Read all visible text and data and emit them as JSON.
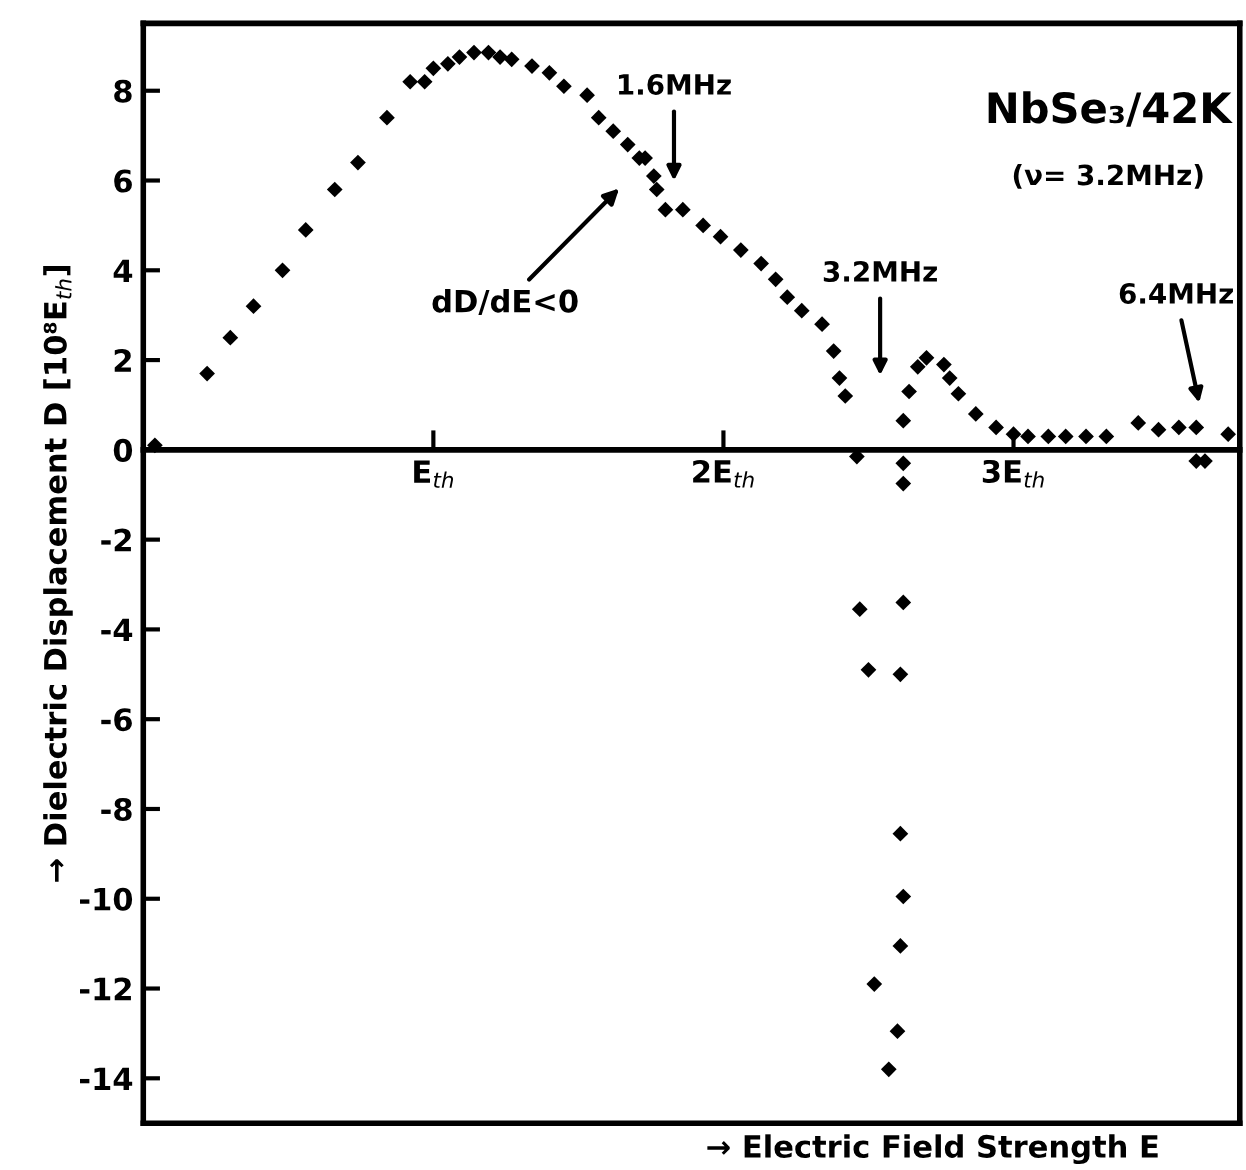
{
  "chart_data": {
    "type": "scatter",
    "xlabel": "→ Electric Field Strength E",
    "ylabel": "→ Dielectric Displacement D [10⁸E$_{th}$]",
    "xlim": [
      0,
      3.78
    ],
    "ylim": [
      -15,
      9.5
    ],
    "xticks": [
      {
        "value": 1,
        "label": "E$_{th}$"
      },
      {
        "value": 2,
        "label": "2E$_{th}$"
      },
      {
        "value": 3,
        "label": "3E$_{th}$"
      }
    ],
    "yticks": [
      -14,
      -12,
      -10,
      -8,
      -6,
      -4,
      -2,
      0,
      2,
      4,
      6,
      8
    ],
    "marker": "diamond",
    "grid": false,
    "legend": false,
    "series": [
      {
        "color": "#000000",
        "x": [
          0.04,
          0.22,
          0.3,
          0.38,
          0.48,
          0.56,
          0.66,
          0.74,
          0.84,
          0.92,
          0.97,
          1.0,
          1.05,
          1.09,
          1.14,
          1.19,
          1.23,
          1.27,
          1.34,
          1.4,
          1.45,
          1.53,
          1.57,
          1.62,
          1.67,
          1.71,
          1.73,
          1.76,
          1.77,
          1.8,
          1.86,
          1.93,
          1.99,
          2.06,
          2.13,
          2.18,
          2.22,
          2.27,
          2.34,
          2.38,
          2.4,
          2.42,
          2.46,
          2.62,
          2.64,
          2.67,
          2.7,
          2.76,
          2.78,
          2.81,
          2.87,
          2.94,
          3.0,
          3.05,
          3.12,
          3.18,
          3.25,
          3.32,
          3.43,
          3.5,
          3.57,
          3.63,
          3.74,
          3.63,
          3.66,
          2.62,
          2.62,
          2.47,
          2.62,
          2.5,
          2.61,
          2.61,
          2.62,
          2.61,
          2.52,
          2.6,
          2.57
        ],
        "values": [
          0.1,
          1.7,
          2.5,
          3.2,
          4.0,
          4.9,
          5.8,
          6.4,
          7.4,
          8.2,
          8.2,
          8.5,
          8.6,
          8.75,
          8.85,
          8.85,
          8.75,
          8.7,
          8.55,
          8.4,
          8.1,
          7.9,
          7.4,
          7.1,
          6.8,
          6.5,
          6.5,
          6.1,
          5.8,
          5.35,
          5.35,
          5.0,
          4.75,
          4.45,
          4.15,
          3.8,
          3.4,
          3.1,
          2.8,
          2.2,
          1.6,
          1.2,
          -0.15,
          0.65,
          1.3,
          1.85,
          2.05,
          1.9,
          1.6,
          1.25,
          0.8,
          0.5,
          0.35,
          0.3,
          0.3,
          0.3,
          0.3,
          0.3,
          0.6,
          0.45,
          0.5,
          0.5,
          0.35,
          -0.25,
          -0.25,
          -0.3,
          -0.75,
          -3.55,
          -3.4,
          -4.9,
          -5.0,
          -8.55,
          -9.95,
          -11.05,
          -11.9,
          -12.95,
          -13.8
        ]
      }
    ],
    "annotations": [
      "1.6MHz",
      "3.2MHz",
      "6.4MHz",
      "dD/dE<0",
      "NbSe₃/42K",
      "(ν= 3.2MHz)"
    ]
  }
}
